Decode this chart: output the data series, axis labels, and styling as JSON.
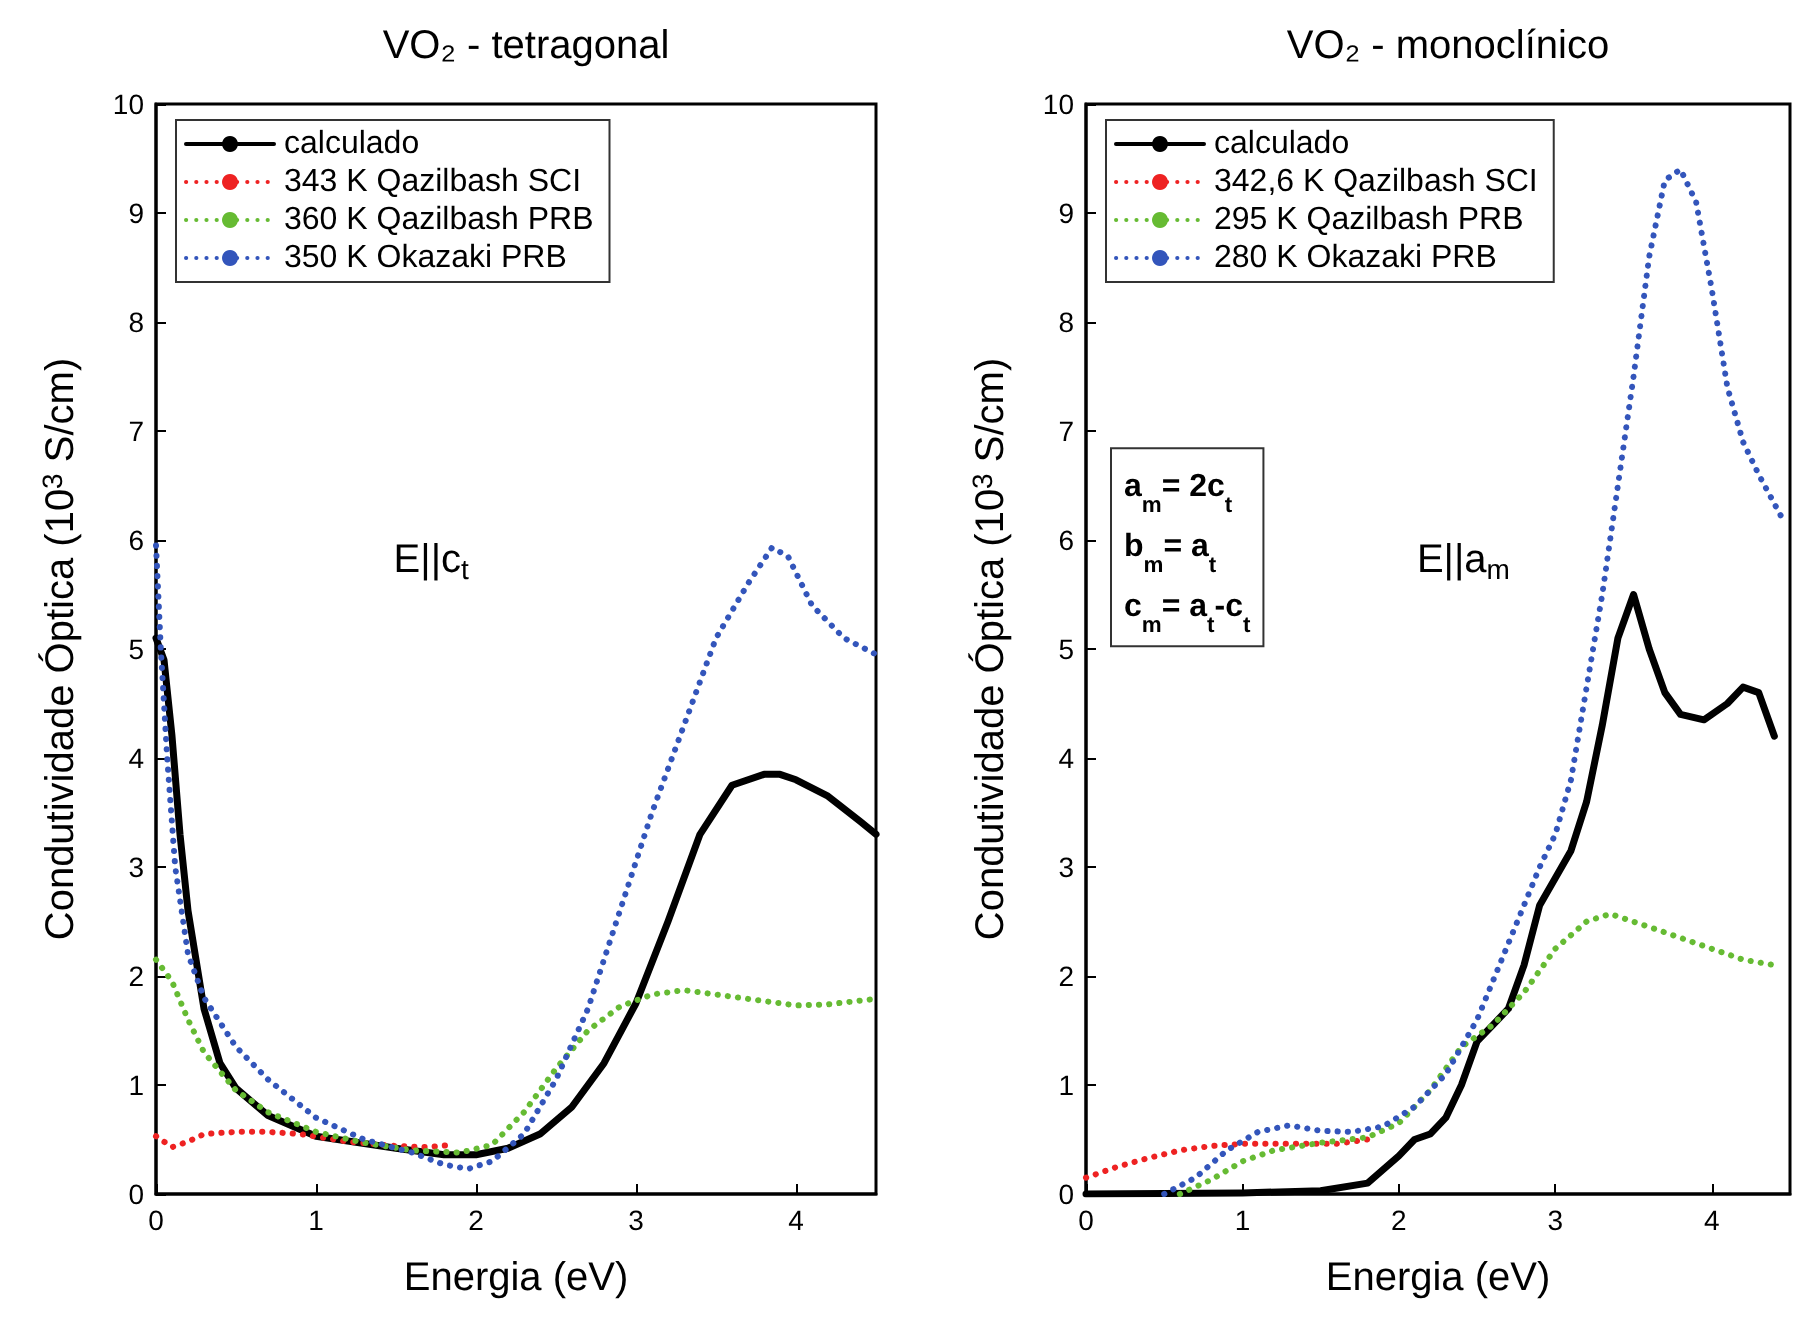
{
  "chart_data": [
    {
      "type": "line",
      "title": "VO₂ - tetragonal",
      "xlabel": "Energia (eV)",
      "ylabel": "Condutividade Óptica (10$^{3}$ S/cm)",
      "annotations": [
        "E||c$_{t}$"
      ],
      "xlim": [
        0,
        4.5
      ],
      "ylim": [
        0,
        10
      ],
      "xticks": [
        0,
        1,
        2,
        3,
        4
      ],
      "yticks": [
        0,
        1,
        2,
        3,
        4,
        5,
        6,
        7,
        8,
        9,
        10
      ],
      "legend": "top left",
      "grid": false,
      "marker": "none",
      "series": [
        {
          "name": "calculado",
          "color": "#000000",
          "line_style": "solid",
          "x": [
            0,
            0.05,
            0.1,
            0.15,
            0.2,
            0.3,
            0.4,
            0.5,
            0.7,
            1,
            1.5,
            1.8,
            2,
            2.2,
            2.4,
            2.6,
            2.8,
            3,
            3.2,
            3.4,
            3.6,
            3.8,
            3.9,
            4,
            4.2,
            4.4,
            4.5
          ],
          "values": [
            5.1,
            4.9,
            4.2,
            3.3,
            2.6,
            1.7,
            1.2,
            0.97,
            0.72,
            0.53,
            0.42,
            0.36,
            0.36,
            0.42,
            0.55,
            0.8,
            1.2,
            1.75,
            2.5,
            3.3,
            3.75,
            3.85,
            3.85,
            3.8,
            3.65,
            3.42,
            3.3
          ]
        },
        {
          "name": "343 K Qazilbash SCI",
          "color": "#ee2222",
          "line_style": "dotted",
          "x": [
            0,
            0.1,
            0.2,
            0.3,
            0.5,
            0.7,
            0.9,
            1.2,
            1.5,
            1.7,
            1.85
          ],
          "values": [
            0.53,
            0.43,
            0.48,
            0.55,
            0.57,
            0.57,
            0.55,
            0.48,
            0.44,
            0.43,
            0.45
          ]
        },
        {
          "name": "360 K Qazilbash PRB",
          "color": "#66bb33",
          "line_style": "dotted",
          "x": [
            0,
            0.1,
            0.2,
            0.3,
            0.5,
            0.7,
            1,
            1.3,
            1.6,
            1.9,
            2.1,
            2.3,
            2.5,
            2.7,
            2.9,
            3.1,
            3.3,
            3.5,
            3.8,
            4,
            4.2,
            4.5
          ],
          "values": [
            2.15,
            1.95,
            1.6,
            1.3,
            0.95,
            0.75,
            0.57,
            0.47,
            0.4,
            0.38,
            0.45,
            0.75,
            1.15,
            1.5,
            1.72,
            1.83,
            1.87,
            1.83,
            1.77,
            1.73,
            1.74,
            1.79
          ]
        },
        {
          "name": "350 K Okazaki PRB",
          "color": "#3355bb",
          "line_style": "dotted",
          "x": [
            0,
            0.03,
            0.07,
            0.12,
            0.2,
            0.3,
            0.5,
            0.7,
            1,
            1.3,
            1.6,
            1.8,
            1.95,
            2.1,
            2.3,
            2.5,
            2.7,
            2.9,
            3.1,
            3.3,
            3.5,
            3.7,
            3.85,
            3.95,
            4.1,
            4.3,
            4.5
          ],
          "values": [
            5.95,
            5,
            4,
            3,
            2.2,
            1.8,
            1.35,
            1.05,
            0.7,
            0.5,
            0.38,
            0.27,
            0.23,
            0.3,
            0.55,
            1.05,
            1.7,
            2.6,
            3.5,
            4.3,
            5.1,
            5.6,
            5.93,
            5.85,
            5.4,
            5.1,
            4.95
          ]
        }
      ]
    },
    {
      "type": "line",
      "title": "VO₂ - monoclínico",
      "xlabel": "Energia (eV)",
      "ylabel": "Condutividade Óptica (10$^{3}$ S/cm)",
      "annotations": [
        "E||a$_{m}$",
        "a$_{m}$= 2c$_{t}$",
        "b$_{m}$= a$_{t}$",
        "c$_{m}$= a$_{t}$-c$_{t}$"
      ],
      "xlim": [
        0,
        4.5
      ],
      "ylim": [
        0,
        10
      ],
      "xticks": [
        0,
        1,
        2,
        3,
        4
      ],
      "yticks": [
        0,
        1,
        2,
        3,
        4,
        5,
        6,
        7,
        8,
        9,
        10
      ],
      "legend": "top left",
      "grid": false,
      "marker": "none",
      "series": [
        {
          "name": "calculado",
          "color": "#000000",
          "line_style": "solid",
          "x": [
            0,
            1,
            1.5,
            1.8,
            2,
            2.1,
            2.2,
            2.3,
            2.4,
            2.5,
            2.6,
            2.7,
            2.8,
            2.9,
            3,
            3.1,
            3.2,
            3.3,
            3.4,
            3.5,
            3.6,
            3.7,
            3.8,
            3.95,
            4.1,
            4.2,
            4.3,
            4.4
          ],
          "values": [
            0,
            0.01,
            0.03,
            0.1,
            0.35,
            0.5,
            0.55,
            0.7,
            1,
            1.4,
            1.55,
            1.7,
            2.1,
            2.65,
            2.9,
            3.15,
            3.6,
            4.3,
            5.1,
            5.5,
            5,
            4.6,
            4.4,
            4.35,
            4.5,
            4.65,
            4.6,
            4.2
          ]
        },
        {
          "name": "342,6 K Qazilbash SCI",
          "color": "#ee2222",
          "line_style": "dotted",
          "x": [
            0,
            0.2,
            0.4,
            0.6,
            0.8,
            1,
            1.3,
            1.6,
            1.8
          ],
          "values": [
            0.15,
            0.25,
            0.33,
            0.4,
            0.44,
            0.46,
            0.46,
            0.46,
            0.5
          ]
        },
        {
          "name": "295 K Qazilbash PRB",
          "color": "#66bb33",
          "line_style": "dotted",
          "x": [
            0.6,
            0.8,
            1,
            1.2,
            1.5,
            1.8,
            2,
            2.2,
            2.4,
            2.6,
            2.8,
            3,
            3.2,
            3.35,
            3.6,
            3.8,
            4,
            4.2,
            4.4
          ],
          "values": [
            0,
            0.13,
            0.3,
            0.4,
            0.47,
            0.52,
            0.65,
            0.95,
            1.35,
            1.55,
            1.85,
            2.25,
            2.5,
            2.57,
            2.45,
            2.35,
            2.25,
            2.15,
            2.1
          ]
        },
        {
          "name": "280 K Okazaki PRB",
          "color": "#3355bb",
          "line_style": "dotted",
          "x": [
            0.5,
            0.7,
            0.9,
            1.1,
            1.3,
            1.5,
            1.7,
            1.9,
            2.1,
            2.3,
            2.5,
            2.7,
            2.9,
            3,
            3.1,
            3.3,
            3.5,
            3.6,
            3.7,
            3.8,
            3.9,
            4,
            4.1,
            4.2,
            4.3,
            4.45
          ],
          "values": [
            0,
            0.15,
            0.4,
            0.57,
            0.63,
            0.58,
            0.57,
            0.62,
            0.8,
            1.1,
            1.6,
            2.3,
            3,
            3.3,
            3.8,
            5.5,
            7.5,
            8.6,
            9.3,
            9.4,
            9.1,
            8.3,
            7.4,
            6.9,
            6.6,
            6.2
          ]
        }
      ]
    }
  ]
}
